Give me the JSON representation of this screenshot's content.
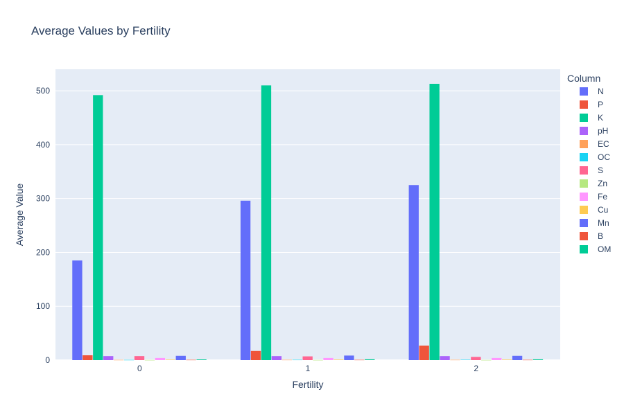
{
  "chart_data": {
    "type": "bar",
    "title": "Average Values by Fertility",
    "xlabel": "Fertility",
    "ylabel": "Average Value",
    "categories": [
      "0",
      "1",
      "2"
    ],
    "ylim": [
      0,
      540
    ],
    "yticks": [
      0,
      100,
      200,
      300,
      400,
      500
    ],
    "grid": true,
    "legend": {
      "title": "Column",
      "position": "right"
    },
    "series": [
      {
        "name": "N",
        "color": "#636efa",
        "values": [
          185,
          296,
          325
        ]
      },
      {
        "name": "P",
        "color": "#EF553B",
        "values": [
          9,
          17,
          27
        ]
      },
      {
        "name": "K",
        "color": "#00cc96",
        "values": [
          492,
          510,
          513
        ]
      },
      {
        "name": "pH",
        "color": "#ab63fa",
        "values": [
          7.5,
          7.5,
          7.5
        ]
      },
      {
        "name": "EC",
        "color": "#FFA15A",
        "values": [
          0.5,
          0.6,
          0.6
        ]
      },
      {
        "name": "OC",
        "color": "#19d3f3",
        "values": [
          0.5,
          0.7,
          0.8
        ]
      },
      {
        "name": "S",
        "color": "#FF6692",
        "values": [
          7.5,
          7,
          6
        ]
      },
      {
        "name": "Zn",
        "color": "#B6E880",
        "values": [
          0.3,
          0.3,
          0.3
        ]
      },
      {
        "name": "Fe",
        "color": "#FF97FF",
        "values": [
          4,
          4,
          4
        ]
      },
      {
        "name": "Cu",
        "color": "#FECB52",
        "values": [
          0.9,
          1,
          1
        ]
      },
      {
        "name": "Mn",
        "color": "#636efa",
        "values": [
          8,
          8.5,
          8
        ]
      },
      {
        "name": "B",
        "color": "#EF553B",
        "values": [
          0.6,
          0.6,
          0.6
        ]
      },
      {
        "name": "OM",
        "color": "#00cc96",
        "values": [
          1.3,
          1.6,
          1.5
        ]
      }
    ]
  }
}
